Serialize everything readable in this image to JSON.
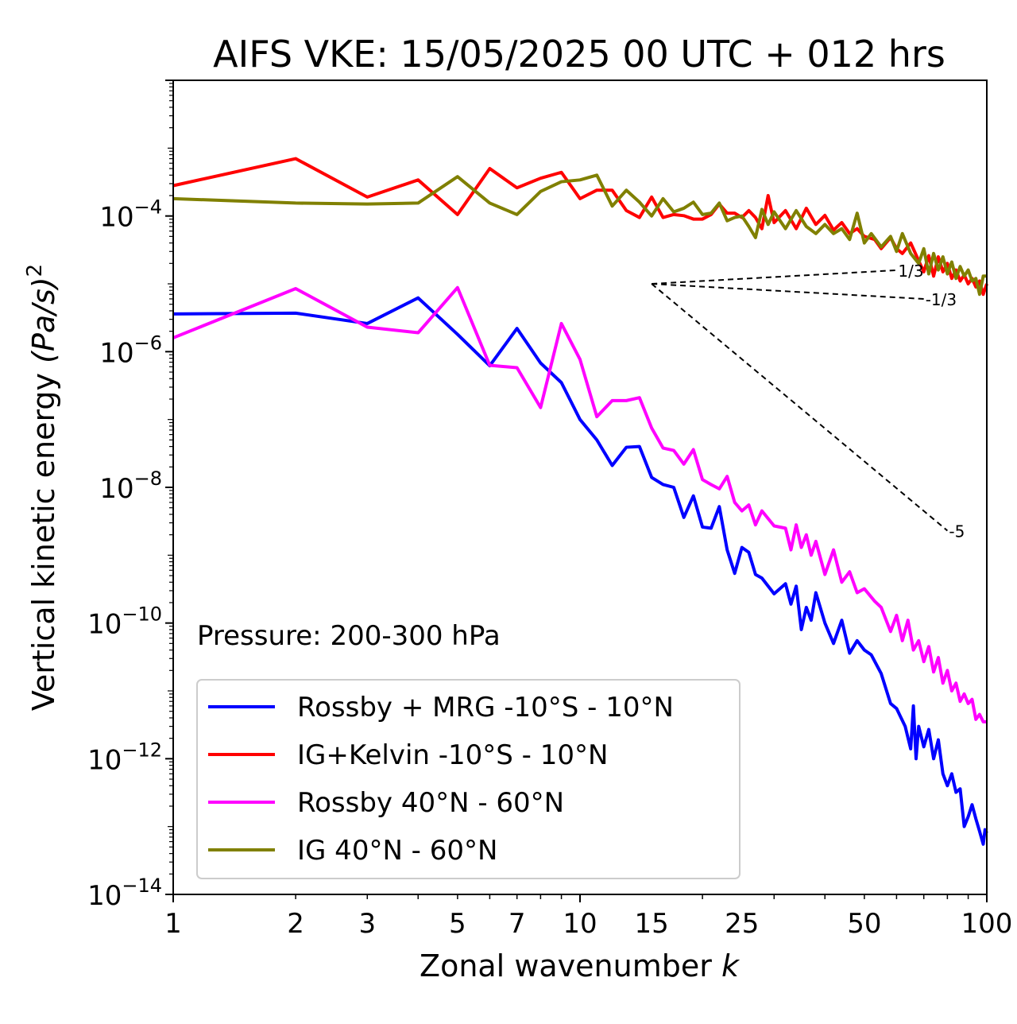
{
  "chart_data": {
    "type": "line",
    "title": "AIFS VKE: 15/05/2025 00 UTC + 012 hrs",
    "xlabel": "Zonal wavenumber",
    "xlabel_var": "k",
    "ylabel": "Vertical kinetic energy",
    "ylabel_math": "(Pa/s)",
    "ylabel_exp": "2",
    "xscale": "log",
    "yscale": "log",
    "xlim": [
      1,
      100
    ],
    "ylim": [
      1e-14,
      0.01
    ],
    "x_ticks": [
      1,
      2,
      3,
      5,
      7,
      10,
      15,
      25,
      50,
      100
    ],
    "x_tick_labels": [
      "1",
      "2",
      "3",
      "5",
      "7",
      "10",
      "15",
      "25",
      "50",
      "100"
    ],
    "y_ticks": [
      {
        "value": 0.0001,
        "base": "10",
        "exp": "−4"
      },
      {
        "value": 1e-06,
        "base": "10",
        "exp": "−6"
      },
      {
        "value": 1e-08,
        "base": "10",
        "exp": "−8"
      },
      {
        "value": 1e-10,
        "base": "10",
        "exp": "−10"
      },
      {
        "value": 1e-12,
        "base": "10",
        "exp": "−12"
      },
      {
        "value": 1e-14,
        "base": "10",
        "exp": "−14"
      }
    ],
    "annotation": "Pressure: 200-300 hPa",
    "legend_position": "lower-left",
    "series": [
      {
        "name": "Rossby + MRG -10°S - 10°N",
        "color": "#0000ff",
        "points": [
          [
            1,
            3.6e-06
          ],
          [
            2,
            3.7e-06
          ],
          [
            3,
            2.6e-06
          ],
          [
            4,
            6.2e-06
          ],
          [
            5,
            1.8e-06
          ],
          [
            6,
            6.2e-07
          ],
          [
            7,
            2.2e-06
          ],
          [
            8,
            6.8e-07
          ],
          [
            9,
            3.5e-07
          ],
          [
            10,
            1e-07
          ],
          [
            11,
            5e-08
          ],
          [
            12,
            2.1e-08
          ],
          [
            13,
            3.9e-08
          ],
          [
            14,
            4e-08
          ],
          [
            15,
            1.4e-08
          ],
          [
            16,
            1.1e-08
          ],
          [
            17,
            1e-08
          ],
          [
            18,
            3.6e-09
          ],
          [
            19,
            7.5e-09
          ],
          [
            20,
            2.6e-09
          ],
          [
            21,
            2.5e-09
          ],
          [
            22,
            5.2e-09
          ],
          [
            23,
            1.2e-09
          ],
          [
            24,
            5.4e-10
          ],
          [
            25,
            1.3e-09
          ],
          [
            26,
            1.1e-09
          ],
          [
            27,
            5.2e-10
          ],
          [
            28,
            4.6e-10
          ],
          [
            30,
            2.7e-10
          ],
          [
            32,
            3.8e-10
          ],
          [
            33,
            1.9e-10
          ],
          [
            34,
            3.5e-10
          ],
          [
            35,
            8e-11
          ],
          [
            36,
            1.7e-10
          ],
          [
            37,
            1.1e-10
          ],
          [
            38,
            2.8e-10
          ],
          [
            40,
            1e-10
          ],
          [
            42,
            5e-11
          ],
          [
            44,
            1.1e-10
          ],
          [
            46,
            3.6e-11
          ],
          [
            48,
            5.5e-11
          ],
          [
            50,
            4e-11
          ],
          [
            52,
            3.4e-11
          ],
          [
            55,
            1.8e-11
          ],
          [
            58,
            6.5e-12
          ],
          [
            60,
            5.5e-12
          ],
          [
            63,
            3e-12
          ],
          [
            65,
            1.4e-12
          ],
          [
            66,
            6e-12
          ],
          [
            67,
            1e-12
          ],
          [
            68,
            3e-12
          ],
          [
            70,
            1.5e-12
          ],
          [
            72,
            2.7e-12
          ],
          [
            74,
            1e-12
          ],
          [
            76,
            1.9e-12
          ],
          [
            78,
            6e-13
          ],
          [
            80,
            4e-13
          ],
          [
            82,
            6e-13
          ],
          [
            84,
            3.2e-13
          ],
          [
            86,
            3.6e-13
          ],
          [
            88,
            1e-13
          ],
          [
            90,
            1.4e-13
          ],
          [
            92,
            2.1e-13
          ],
          [
            94,
            1.3e-13
          ],
          [
            96,
            8.5e-14
          ],
          [
            98,
            5.5e-14
          ],
          [
            99,
            9e-14
          ],
          [
            100,
            8e-14
          ]
        ]
      },
      {
        "name": "IG+Kelvin -10°S - 10°N",
        "color": "#ff0000",
        "points": [
          [
            1,
            0.00028
          ],
          [
            2,
            0.0007
          ],
          [
            3,
            0.00019
          ],
          [
            4,
            0.00034
          ],
          [
            5,
            0.000105
          ],
          [
            6,
            0.0005
          ],
          [
            7,
            0.00026
          ],
          [
            8,
            0.00036
          ],
          [
            9,
            0.00044
          ],
          [
            10,
            0.00018
          ],
          [
            11,
            0.00024
          ],
          [
            12,
            0.00024
          ],
          [
            13,
            0.00012
          ],
          [
            14,
            9.5e-05
          ],
          [
            15,
            0.00019
          ],
          [
            16,
            9.5e-05
          ],
          [
            17,
            0.000105
          ],
          [
            18,
            0.000101
          ],
          [
            19,
            9e-05
          ],
          [
            20,
            9e-05
          ],
          [
            21,
            0.000105
          ],
          [
            22,
            0.00015
          ],
          [
            23,
            0.00011
          ],
          [
            24,
            0.00011
          ],
          [
            25,
            9.5e-05
          ],
          [
            26,
            0.00012
          ],
          [
            27,
            9.5e-05
          ],
          [
            28,
            6.5e-05
          ],
          [
            29,
            0.0002
          ],
          [
            30,
            8e-05
          ],
          [
            32,
            0.00012
          ],
          [
            34,
            6.5e-05
          ],
          [
            36,
            0.00013
          ],
          [
            38,
            7.5e-05
          ],
          [
            40,
            0.000102
          ],
          [
            42,
            6.2e-05
          ],
          [
            44,
            8e-05
          ],
          [
            46,
            5.5e-05
          ],
          [
            48,
            6.5e-05
          ],
          [
            50,
            5e-05
          ],
          [
            53,
            4.5e-05
          ],
          [
            55,
            3.3e-05
          ],
          [
            58,
            4.8e-05
          ],
          [
            60,
            3.3e-05
          ],
          [
            62,
            2.8e-05
          ],
          [
            65,
            4e-05
          ],
          [
            68,
            2.2e-05
          ],
          [
            70,
            1.5e-05
          ],
          [
            72,
            2.6e-05
          ],
          [
            74,
            1.3e-05
          ],
          [
            76,
            2.5e-05
          ],
          [
            78,
            1.5e-05
          ],
          [
            80,
            2e-05
          ],
          [
            82,
            1.2e-05
          ],
          [
            84,
            1.6e-05
          ],
          [
            86,
            1.1e-05
          ],
          [
            88,
            1.35e-05
          ],
          [
            90,
            1e-05
          ],
          [
            92,
            1.2e-05
          ],
          [
            94,
            9e-06
          ],
          [
            96,
            1.1e-05
          ],
          [
            98,
            7e-06
          ],
          [
            100,
            1e-05
          ]
        ]
      },
      {
        "name": "Rossby 40°N - 60°N",
        "color": "#ff00ff",
        "points": [
          [
            1,
            1.6e-06
          ],
          [
            2,
            8.5e-06
          ],
          [
            3,
            2.3e-06
          ],
          [
            4,
            1.9e-06
          ],
          [
            5,
            8.8e-06
          ],
          [
            6,
            6.3e-07
          ],
          [
            7,
            5.8e-07
          ],
          [
            8,
            1.5e-07
          ],
          [
            9,
            2.6e-06
          ],
          [
            10,
            7.7e-07
          ],
          [
            11,
            1.1e-07
          ],
          [
            12,
            1.9e-07
          ],
          [
            13,
            1.9e-07
          ],
          [
            14,
            2.1e-07
          ],
          [
            15,
            7.5e-08
          ],
          [
            16,
            3.8e-08
          ],
          [
            17,
            3.5e-08
          ],
          [
            18,
            2.2e-08
          ],
          [
            19,
            3.6e-08
          ],
          [
            20,
            1.3e-08
          ],
          [
            21,
            1.1e-08
          ],
          [
            22,
            9.5e-09
          ],
          [
            23,
            1.45e-08
          ],
          [
            24,
            6e-09
          ],
          [
            25,
            4.5e-09
          ],
          [
            26,
            5.5e-09
          ],
          [
            27,
            2.8e-09
          ],
          [
            28,
            4.5e-09
          ],
          [
            30,
            2.7e-09
          ],
          [
            32,
            2.5e-09
          ],
          [
            33,
            1.2e-09
          ],
          [
            34,
            2.8e-09
          ],
          [
            35,
            1.3e-09
          ],
          [
            36,
            2e-09
          ],
          [
            37,
            1e-09
          ],
          [
            38,
            1.6e-09
          ],
          [
            40,
            5.2e-10
          ],
          [
            42,
            1.2e-09
          ],
          [
            44,
            4e-10
          ],
          [
            46,
            5.7e-10
          ],
          [
            48,
            2.8e-10
          ],
          [
            50,
            3.2e-10
          ],
          [
            53,
            2.1e-10
          ],
          [
            55,
            1.7e-10
          ],
          [
            58,
            7.5e-11
          ],
          [
            60,
            1.3e-10
          ],
          [
            62,
            5.5e-11
          ],
          [
            64,
            1.1e-10
          ],
          [
            66,
            4e-11
          ],
          [
            68,
            5.5e-11
          ],
          [
            70,
            2.7e-11
          ],
          [
            72,
            4.5e-11
          ],
          [
            74,
            1.9e-11
          ],
          [
            76,
            3.1e-11
          ],
          [
            78,
            1.3e-11
          ],
          [
            80,
            2e-11
          ],
          [
            82,
            1e-11
          ],
          [
            84,
            1.3e-11
          ],
          [
            86,
            7e-12
          ],
          [
            88,
            9e-12
          ],
          [
            90,
            6.5e-12
          ],
          [
            92,
            7.5e-12
          ],
          [
            94,
            3.8e-12
          ],
          [
            96,
            4.5e-12
          ],
          [
            98,
            3.5e-12
          ],
          [
            100,
            3.5e-12
          ]
        ]
      },
      {
        "name": "IG 40°N - 60°N",
        "color": "#808000",
        "points": [
          [
            1,
            0.00018
          ],
          [
            2,
            0.000155
          ],
          [
            3,
            0.00015
          ],
          [
            4,
            0.000155
          ],
          [
            5,
            0.00038
          ],
          [
            6,
            0.000155
          ],
          [
            7,
            0.000105
          ],
          [
            8,
            0.00023
          ],
          [
            9,
            0.00032
          ],
          [
            10,
            0.00034
          ],
          [
            11,
            0.0004
          ],
          [
            12,
            0.00014
          ],
          [
            13,
            0.00024
          ],
          [
            14,
            0.00016
          ],
          [
            15,
            0.0001
          ],
          [
            16,
            0.00018
          ],
          [
            17,
            0.000115
          ],
          [
            18,
            0.00013
          ],
          [
            19,
            0.00016
          ],
          [
            20,
            0.000105
          ],
          [
            21,
            0.00011
          ],
          [
            22,
            0.000155
          ],
          [
            23,
            8.5e-05
          ],
          [
            24,
            9.5e-05
          ],
          [
            25,
            0.0001
          ],
          [
            26,
            7e-05
          ],
          [
            27,
            4.8e-05
          ],
          [
            28,
            0.000125
          ],
          [
            29,
            7.5e-05
          ],
          [
            30,
            0.000115
          ],
          [
            32,
            6.5e-05
          ],
          [
            34,
            0.00012
          ],
          [
            36,
            7e-05
          ],
          [
            38,
            5.5e-05
          ],
          [
            40,
            7.5e-05
          ],
          [
            42,
            5.5e-05
          ],
          [
            44,
            6.5e-05
          ],
          [
            46,
            4.5e-05
          ],
          [
            48,
            0.00011
          ],
          [
            50,
            4e-05
          ],
          [
            52,
            5.5e-05
          ],
          [
            55,
            3.5e-05
          ],
          [
            58,
            5e-05
          ],
          [
            60,
            3e-05
          ],
          [
            62,
            5.5e-05
          ],
          [
            65,
            2.8e-05
          ],
          [
            68,
            2e-05
          ],
          [
            70,
            3.3e-05
          ],
          [
            72,
            1.4e-05
          ],
          [
            74,
            2.8e-05
          ],
          [
            76,
            1.6e-05
          ],
          [
            78,
            2.5e-05
          ],
          [
            80,
            1.4e-05
          ],
          [
            82,
            2.1e-05
          ],
          [
            84,
            1.2e-05
          ],
          [
            86,
            1.8e-05
          ],
          [
            88,
            1.3e-05
          ],
          [
            90,
            1.6e-05
          ],
          [
            92,
            1.1e-05
          ],
          [
            94,
            1.2e-05
          ],
          [
            96,
            7e-06
          ],
          [
            98,
            1.3e-05
          ],
          [
            100,
            1.3e-05
          ]
        ]
      }
    ],
    "reference_slopes": [
      {
        "label": "1/3",
        "origin": [
          15,
          1e-05
        ],
        "end": [
          60,
          1.5862e-05
        ]
      },
      {
        "label": "-1/3",
        "origin": [
          15,
          1e-05
        ],
        "end": [
          70,
          5.99e-06
        ]
      },
      {
        "label": "-5",
        "origin": [
          15,
          1e-05
        ],
        "end": [
          80,
          2.3e-09
        ]
      }
    ]
  }
}
